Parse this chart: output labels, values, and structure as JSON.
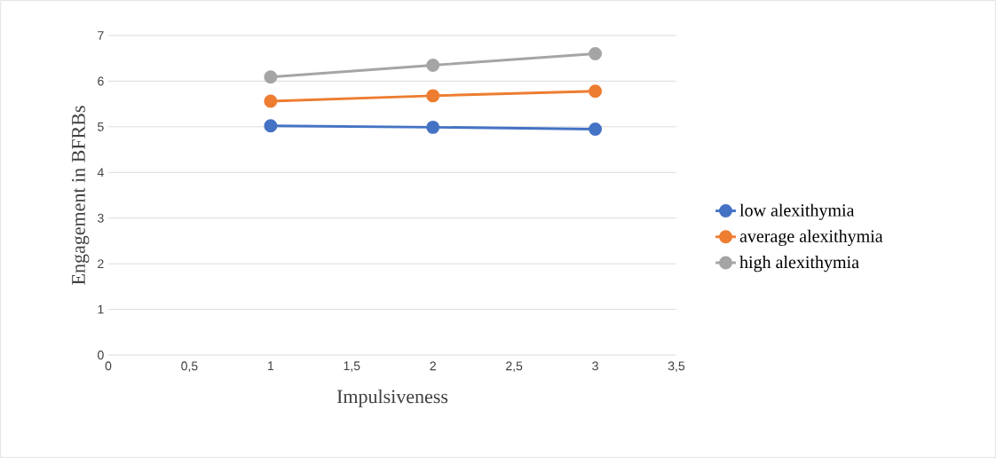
{
  "chart_data": {
    "type": "line",
    "xlabel": "Impulsiveness",
    "ylabel": "Engagement in BFRBs",
    "x": [
      1,
      2,
      3
    ],
    "series": [
      {
        "name": "low alexithymia",
        "color": "#4472c4",
        "values": [
          5.02,
          4.99,
          4.95
        ]
      },
      {
        "name": "average alexithymia",
        "color": "#ed7d31",
        "values": [
          5.56,
          5.68,
          5.78
        ]
      },
      {
        "name": "high alexithymia",
        "color": "#a5a5a5",
        "values": [
          6.09,
          6.35,
          6.6
        ]
      }
    ],
    "xlim": [
      0,
      3.5
    ],
    "ylim": [
      0,
      7
    ],
    "xticks": [
      0,
      {
        "value": 0.5,
        "label": "0,5"
      },
      1,
      {
        "value": 1.5,
        "label": "1,5"
      },
      2,
      {
        "value": 2.5,
        "label": "2,5"
      },
      3,
      {
        "value": 3.5,
        "label": "3,5"
      }
    ],
    "yticks": [
      0,
      1,
      2,
      3,
      4,
      5,
      6,
      7
    ],
    "grid": "y",
    "legend": "right",
    "marker": "circle",
    "line_style": "solid"
  }
}
